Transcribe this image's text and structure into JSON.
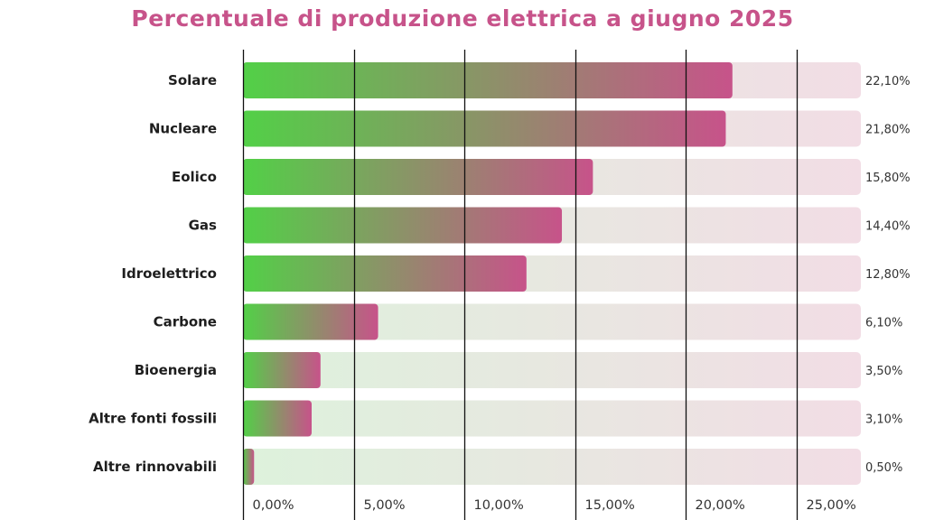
{
  "colors": {
    "title": "#c7538a",
    "bar_start": "#52d047",
    "bar_end": "#c7538a",
    "track_start": "#ddf2dc",
    "track_end": "#f2dde5",
    "grid": "#111111"
  },
  "chart_data": {
    "type": "bar",
    "orientation": "horizontal",
    "title": "Percentuale di produzione elettrica a giugno 2025",
    "xlabel": "",
    "ylabel": "",
    "xlim": [
      0,
      27.9
    ],
    "grid": true,
    "legend": "none",
    "categories": [
      "Solare",
      "Nucleare",
      "Eolico",
      "Gas",
      "Idroelettrico",
      "Carbone",
      "Bioenergia",
      "Altre fonti fossili",
      "Altre rinnovabili"
    ],
    "values": [
      22.1,
      21.8,
      15.8,
      14.4,
      12.8,
      6.1,
      3.5,
      3.1,
      0.5
    ],
    "value_labels": [
      "22,10%",
      "21,80%",
      "15,80%",
      "14,40%",
      "12,80%",
      "6,10%",
      "3,50%",
      "3,10%",
      "0,50%"
    ],
    "ticks": [
      0,
      5,
      10,
      15,
      20,
      25
    ],
    "tick_labels": [
      "0,00%",
      "5,00%",
      "10,00%",
      "15,00%",
      "20,00%",
      "25,00%"
    ]
  }
}
